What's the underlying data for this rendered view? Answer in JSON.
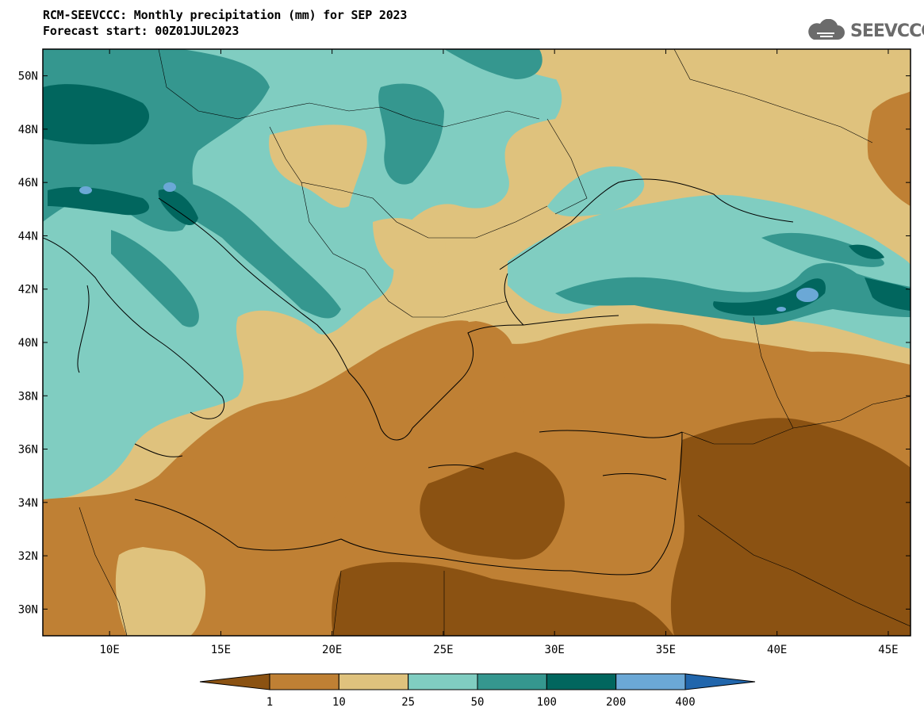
{
  "header": {
    "title_line1": "RCM-SEEVCCC: Monthly precipitation (mm) for SEP 2023",
    "title_line2": "Forecast start: 00Z01JUL2023",
    "logo_text": "SEEVCCC"
  },
  "map": {
    "lon_range": [
      7,
      46
    ],
    "lat_range": [
      29,
      51
    ],
    "lat_ticks": [
      "30N",
      "32N",
      "34N",
      "36N",
      "38N",
      "40N",
      "42N",
      "44N",
      "46N",
      "48N",
      "50N"
    ],
    "lon_ticks": [
      "10E",
      "15E",
      "20E",
      "25E",
      "30E",
      "35E",
      "40E",
      "45E"
    ]
  },
  "colorbar": {
    "labels": [
      "1",
      "10",
      "25",
      "50",
      "100",
      "200",
      "400"
    ],
    "colors": [
      "#8b5212",
      "#bf8034",
      "#dfc27d",
      "#80cdc1",
      "#35978f",
      "#01665e",
      "#6ba8d6",
      "#2166ac"
    ]
  }
}
